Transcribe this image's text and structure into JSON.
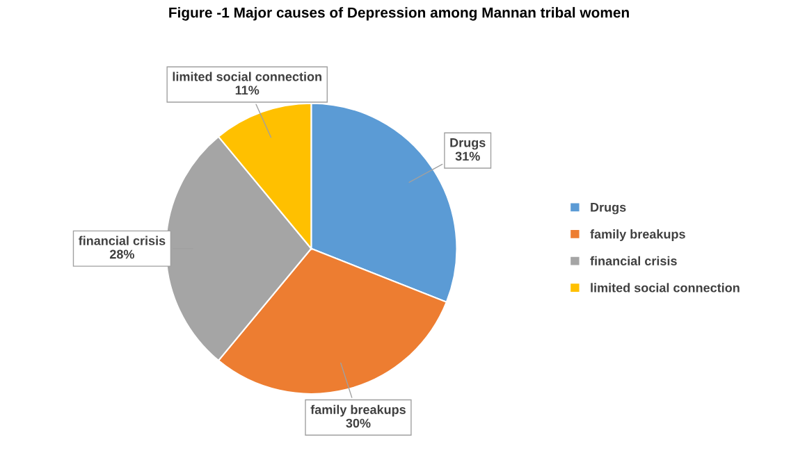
{
  "chart_data": {
    "type": "pie",
    "title": "Figure -1 Major causes of Depression among Mannan tribal women",
    "categories": [
      "Drugs",
      "family breakups",
      "financial crisis",
      "limited social connection"
    ],
    "values": [
      31,
      30,
      28,
      11
    ],
    "value_labels": [
      "31%",
      "30%",
      "28%",
      "11%"
    ],
    "colors": [
      "#5b9bd5",
      "#ed7d31",
      "#a5a5a5",
      "#ffc000"
    ],
    "legend": "right"
  }
}
